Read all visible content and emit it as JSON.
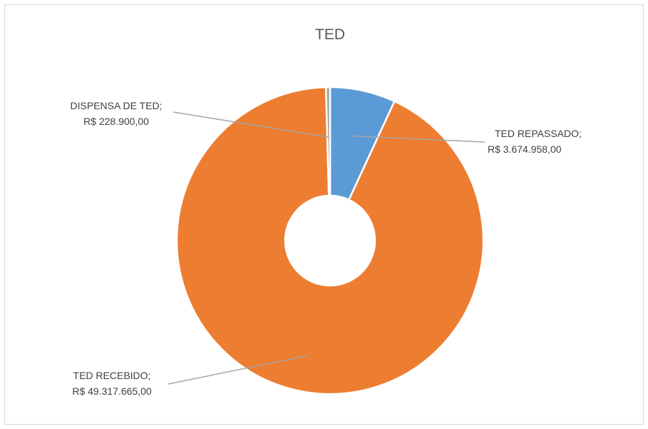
{
  "chart_data": {
    "type": "pie",
    "variant": "doughnut",
    "title": "TED",
    "slices": [
      {
        "name": "TED REPASSADO",
        "value": 3674958.0,
        "label_line1": "TED REPASSADO;",
        "label_line2": "R$ 3.674.958,00",
        "color": "#5b9bd5"
      },
      {
        "name": "TED RECEBIDO",
        "value": 49317665.0,
        "label_line1": "TED RECEBIDO;",
        "label_line2": "R$ 49.317.665,00",
        "color": "#ed7d31"
      },
      {
        "name": "DISPENSA DE TED",
        "value": 228900.0,
        "label_line1": "DISPENSA DE TED;",
        "label_line2": "R$ 228.900,00",
        "color": "#a5a5a5"
      }
    ],
    "legend": "none",
    "leader_line_color": "#a6a6a6"
  }
}
